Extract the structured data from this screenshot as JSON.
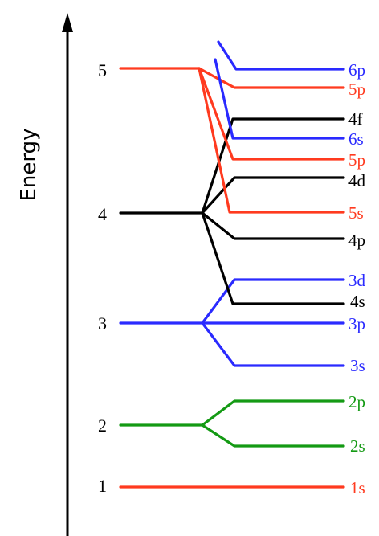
{
  "axis": {
    "title": "Energy"
  },
  "colors": {
    "red": "#ff3a1f",
    "blue": "#2a2aff",
    "green": "#149a14",
    "black": "#000000"
  },
  "shells": [
    {
      "n": "1",
      "color": "red"
    },
    {
      "n": "2",
      "color": "green"
    },
    {
      "n": "3",
      "color": "blue"
    },
    {
      "n": "4",
      "color": "black"
    },
    {
      "n": "5",
      "color": "red"
    }
  ],
  "orbitals": [
    {
      "label": "6p",
      "color": "blue"
    },
    {
      "label": "5p",
      "color": "red"
    },
    {
      "label": "4f",
      "color": "black"
    },
    {
      "label": "6s",
      "color": "blue"
    },
    {
      "label": "5p",
      "color": "red"
    },
    {
      "label": "4d",
      "color": "black"
    },
    {
      "label": "5s",
      "color": "red"
    },
    {
      "label": "4p",
      "color": "black"
    },
    {
      "label": "3d",
      "color": "blue"
    },
    {
      "label": "4s",
      "color": "black"
    },
    {
      "label": "3p",
      "color": "blue"
    },
    {
      "label": "3s",
      "color": "blue"
    },
    {
      "label": "2p",
      "color": "green"
    },
    {
      "label": "2s",
      "color": "green"
    },
    {
      "label": "1s",
      "color": "red"
    }
  ]
}
